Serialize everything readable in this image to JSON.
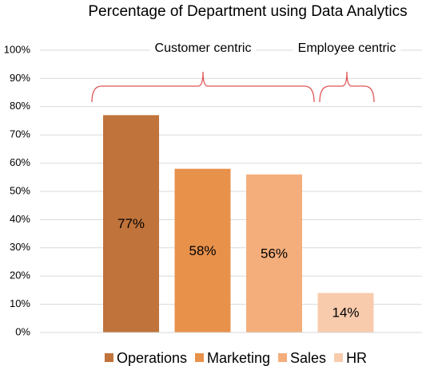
{
  "chart_data": {
    "type": "bar",
    "title": "Percentage of Department using Data Analytics",
    "series": [
      {
        "name": "Operations",
        "color": "#c0733a",
        "values": [
          77
        ],
        "value_labels": [
          "77%"
        ]
      },
      {
        "name": "Marketing",
        "color": "#e8914b",
        "values": [
          58
        ],
        "value_labels": [
          "58%"
        ]
      },
      {
        "name": "Sales",
        "color": "#f4ae7b",
        "values": [
          56
        ],
        "value_labels": [
          "56%"
        ]
      },
      {
        "name": "HR",
        "color": "#f8cbad",
        "values": [
          14
        ],
        "value_labels": [
          "14%"
        ]
      }
    ],
    "annotations": [
      "Customer centric",
      "Employee centric"
    ],
    "ylim": [
      0,
      100
    ],
    "yticks": [
      {
        "value": 0,
        "label": "0%"
      },
      {
        "value": 10,
        "label": "10%"
      },
      {
        "value": 20,
        "label": "20%"
      },
      {
        "value": 30,
        "label": "30%"
      },
      {
        "value": 40,
        "label": "40%"
      },
      {
        "value": 50,
        "label": "50%"
      },
      {
        "value": 60,
        "label": "60%"
      },
      {
        "value": 70,
        "label": "70%"
      },
      {
        "value": 80,
        "label": "80%"
      },
      {
        "value": 90,
        "label": "90%"
      },
      {
        "value": 100,
        "label": "100%"
      }
    ],
    "grid": true,
    "legend": "bottom"
  }
}
